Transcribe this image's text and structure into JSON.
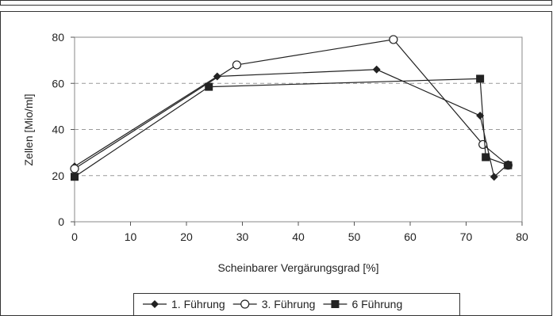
{
  "chart_data": {
    "type": "line",
    "title": "",
    "xlabel": "Scheinbarer Vergärungsgrad [%]",
    "ylabel": "Zellen [Mio/ml]",
    "xlim": [
      0,
      80
    ],
    "ylim": [
      0,
      80
    ],
    "x_ticks": [
      "0",
      "10",
      "20",
      "30",
      "40",
      "50",
      "60",
      "70",
      "80"
    ],
    "y_ticks": [
      "0",
      "20",
      "40",
      "60",
      "80"
    ],
    "grid": "horizontal dashed",
    "legend_position": "bottom",
    "series": [
      {
        "name": "1. Führung",
        "marker": "diamond",
        "color": "#222222",
        "points": [
          [
            0,
            24
          ],
          [
            25.5,
            63
          ],
          [
            54,
            66
          ],
          [
            72.5,
            46
          ],
          [
            75,
            19.5
          ],
          [
            77.5,
            25
          ]
        ]
      },
      {
        "name": "3. Führung",
        "marker": "circle-open",
        "color": "#222222",
        "points": [
          [
            0,
            23
          ],
          [
            29,
            68
          ],
          [
            57,
            79
          ],
          [
            73,
            33.5
          ],
          [
            77.5,
            24.5
          ]
        ]
      },
      {
        "name": "6 Führung",
        "marker": "square",
        "color": "#222222",
        "points": [
          [
            0,
            19.5
          ],
          [
            24,
            58.5
          ],
          [
            72.5,
            62
          ],
          [
            73.5,
            28
          ],
          [
            77.5,
            24.5
          ]
        ]
      }
    ]
  }
}
